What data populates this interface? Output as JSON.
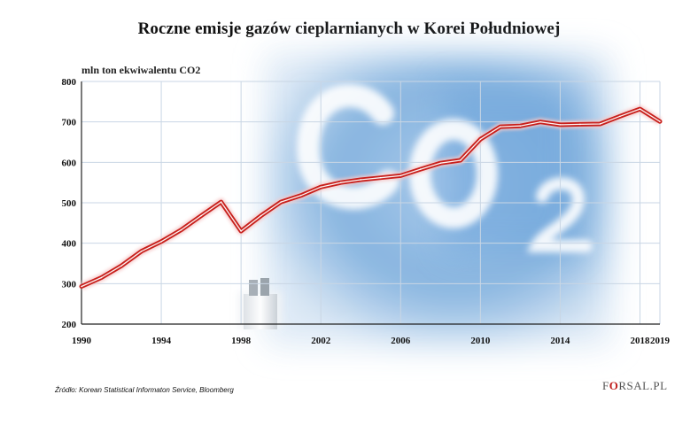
{
  "chart_data": {
    "type": "line",
    "title": "Roczne emisje gazów cieplarnianych w Korei Południowej",
    "ylabel": "mln ton ekwiwalentu CO2",
    "xlabel": "",
    "xlim": [
      1990,
      2019
    ],
    "ylim": [
      200,
      800
    ],
    "yticks": [
      200,
      300,
      400,
      500,
      600,
      700,
      800
    ],
    "xticks": [
      1990,
      1994,
      1998,
      2002,
      2006,
      2010,
      2014,
      2018,
      2019
    ],
    "grid": true,
    "series": [
      {
        "x": [
          1990,
          1991,
          1992,
          1993,
          1994,
          1995,
          1996,
          1997,
          1998,
          1999,
          2000,
          2001,
          2002,
          2003,
          2004,
          2005,
          2006,
          2007,
          2008,
          2009,
          2010,
          2011,
          2012,
          2013,
          2014,
          2015,
          2016,
          2017,
          2018,
          2019
        ],
        "values": [
          293,
          315,
          344,
          380,
          404,
          433,
          468,
          502,
          430,
          468,
          502,
          518,
          539,
          550,
          557,
          562,
          567,
          583,
          598,
          605,
          657,
          688,
          690,
          700,
          693,
          694,
          695,
          714,
          732,
          701
        ]
      }
    ],
    "colors": {
      "line": "#c8201c",
      "line_glow": "#f6c9c9",
      "grid": "#c9d6e4"
    }
  },
  "source": "Źródło:  Korean Statistical Informaton Service, Bloomberg",
  "logo": {
    "left": "F",
    "mark": "O",
    "right": "RSAL.PL"
  }
}
